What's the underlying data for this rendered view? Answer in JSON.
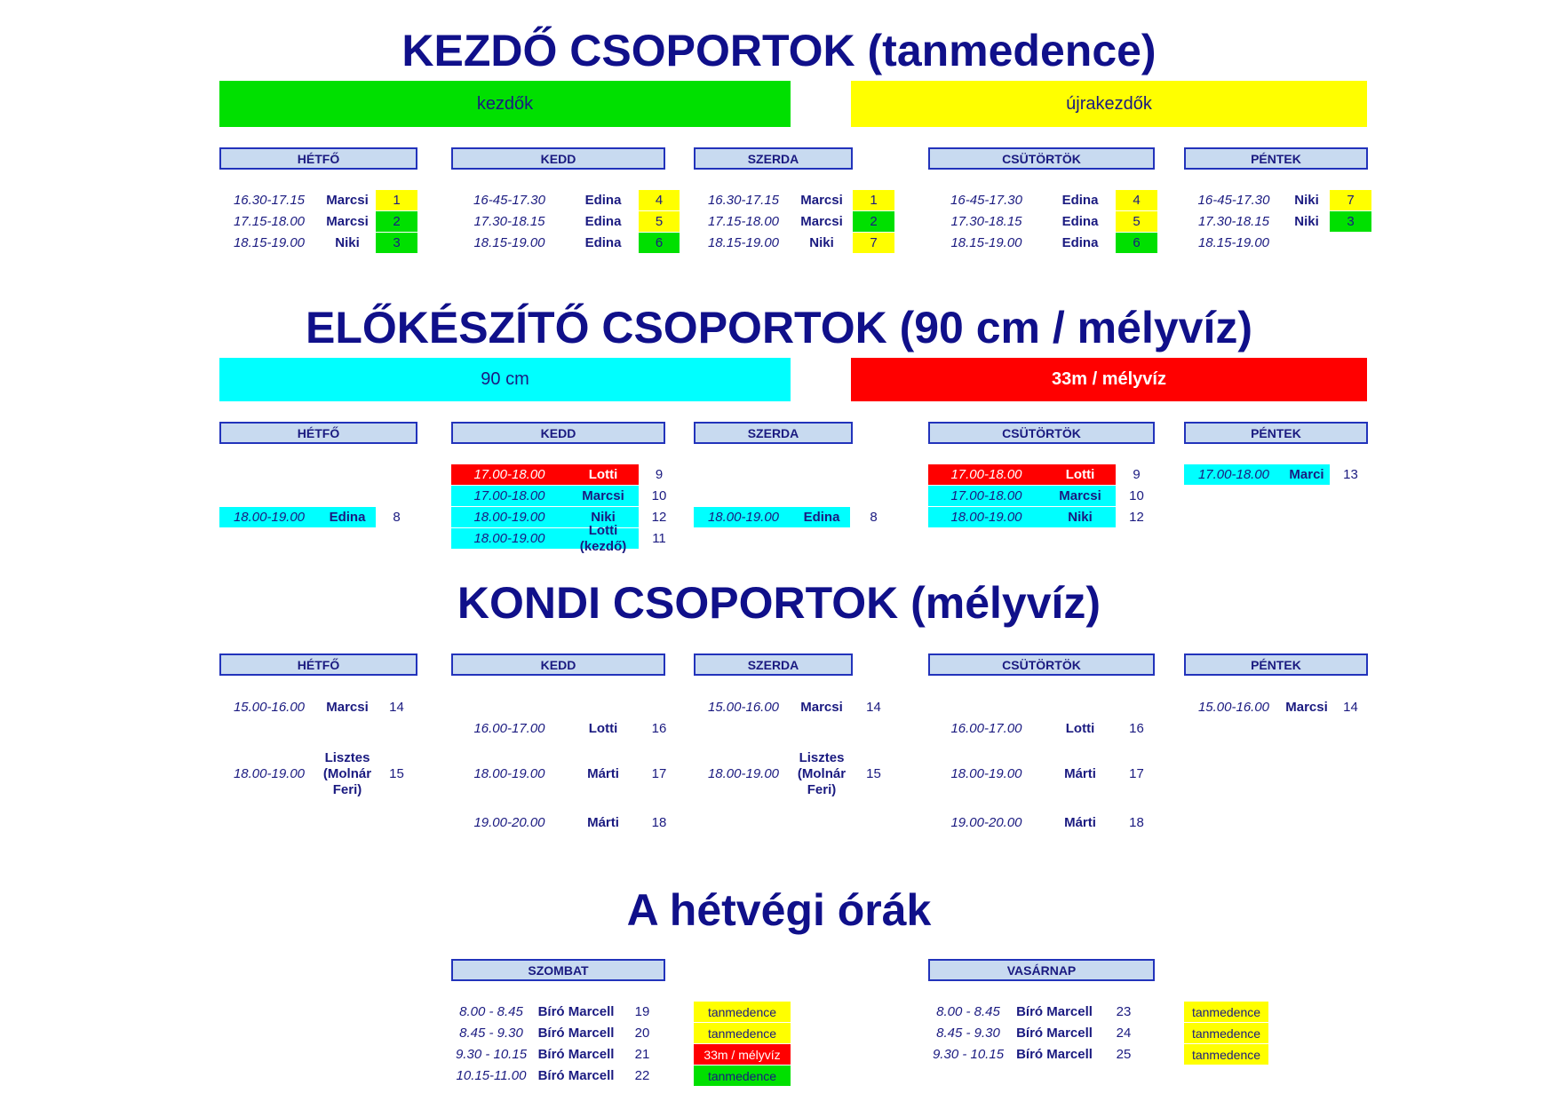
{
  "colors": {
    "green": "#00e000",
    "yellow": "#ffff00",
    "cyan": "#00ffff",
    "red": "#ff0000",
    "day_header": "#c8daf0",
    "title": "#10108a"
  },
  "days": {
    "mon": "HÉTFŐ",
    "tue": "KEDD",
    "wed": "SZERDA",
    "thu": "CSÜTÖRTÖK",
    "fri": "PÉNTEK",
    "sat": "SZOMBAT",
    "sun": "VASÁRNAP"
  },
  "section1": {
    "title": "KEZDŐ CSOPORTOK (tanmedence)",
    "band_left": "kezdők",
    "band_right": "újrakezdők",
    "mon": [
      {
        "time": "16.30-17.15",
        "name": "Marcsi",
        "group": "1",
        "color": "yellow"
      },
      {
        "time": "17.15-18.00",
        "name": "Marcsi",
        "group": "2",
        "color": "green"
      },
      {
        "time": "18.15-19.00",
        "name": "Niki",
        "group": "3",
        "color": "green"
      }
    ],
    "tue": [
      {
        "time": "16-45-17.30",
        "name": "Edina",
        "group": "4",
        "color": "yellow"
      },
      {
        "time": "17.30-18.15",
        "name": "Edina",
        "group": "5",
        "color": "yellow"
      },
      {
        "time": "18.15-19.00",
        "name": "Edina",
        "group": "6",
        "color": "green"
      }
    ],
    "wed": [
      {
        "time": "16.30-17.15",
        "name": "Marcsi",
        "group": "1",
        "color": "yellow"
      },
      {
        "time": "17.15-18.00",
        "name": "Marcsi",
        "group": "2",
        "color": "green"
      },
      {
        "time": "18.15-19.00",
        "name": "Niki",
        "group": "7",
        "color": "yellow"
      }
    ],
    "thu": [
      {
        "time": "16-45-17.30",
        "name": "Edina",
        "group": "4",
        "color": "yellow"
      },
      {
        "time": "17.30-18.15",
        "name": "Edina",
        "group": "5",
        "color": "yellow"
      },
      {
        "time": "18.15-19.00",
        "name": "Edina",
        "group": "6",
        "color": "green"
      }
    ],
    "fri": [
      {
        "time": "16-45-17.30",
        "name": "Niki",
        "group": "7",
        "color": "yellow"
      },
      {
        "time": "17.30-18.15",
        "name": "Niki",
        "group": "3",
        "color": "green"
      },
      {
        "time": "18.15-19.00",
        "name": "",
        "group": "",
        "color": ""
      }
    ]
  },
  "section2": {
    "title": "ELŐKÉSZÍTŐ CSOPORTOK (90 cm / mélyvíz)",
    "band_left": "90 cm",
    "band_right": "33m / mélyvíz",
    "mon": [
      {
        "time": "18.00-19.00",
        "name": "Edina",
        "group": "8",
        "color": "cyan"
      }
    ],
    "tue": [
      {
        "time": "17.00-18.00",
        "name": "Lotti",
        "group": "9",
        "color": "red"
      },
      {
        "time": "17.00-18.00",
        "name": "Marcsi",
        "group": "10",
        "color": "cyan"
      },
      {
        "time": "18.00-19.00",
        "name": "Niki",
        "group": "12",
        "color": "cyan"
      },
      {
        "time": "18.00-19.00",
        "name": "Lotti (kezdő)",
        "group": "11",
        "color": "cyan"
      }
    ],
    "wed": [
      {
        "time": "18.00-19.00",
        "name": "Edina",
        "group": "8",
        "color": "cyan"
      }
    ],
    "thu": [
      {
        "time": "17.00-18.00",
        "name": "Lotti",
        "group": "9",
        "color": "red"
      },
      {
        "time": "17.00-18.00",
        "name": "Marcsi",
        "group": "10",
        "color": "cyan"
      },
      {
        "time": "18.00-19.00",
        "name": "Niki",
        "group": "12",
        "color": "cyan"
      }
    ],
    "fri": [
      {
        "time": "17.00-18.00",
        "name": "Marci",
        "group": "13",
        "color": "cyan"
      }
    ]
  },
  "section3": {
    "title": "KONDI CSOPORTOK (mélyvíz)",
    "mon": [
      {
        "time": "15.00-16.00",
        "name": "Marcsi",
        "group": "14"
      },
      {
        "time": "18.00-19.00",
        "name": "Lisztes (Molnár Feri)",
        "group": "15"
      }
    ],
    "tue": [
      {
        "time": "16.00-17.00",
        "name": "Lotti",
        "group": "16"
      },
      {
        "time": "18.00-19.00",
        "name": "Márti",
        "group": "17"
      },
      {
        "time": "19.00-20.00",
        "name": "Márti",
        "group": "18"
      }
    ],
    "wed": [
      {
        "time": "15.00-16.00",
        "name": "Marcsi",
        "group": "14"
      },
      {
        "time": "18.00-19.00",
        "name": "Lisztes (Molnár Feri)",
        "group": "15"
      }
    ],
    "thu": [
      {
        "time": "16.00-17.00",
        "name": "Lotti",
        "group": "16"
      },
      {
        "time": "18.00-19.00",
        "name": "Márti",
        "group": "17"
      },
      {
        "time": "19.00-20.00",
        "name": "Márti",
        "group": "18"
      }
    ],
    "fri": [
      {
        "time": "15.00-16.00",
        "name": "Marcsi",
        "group": "14"
      }
    ]
  },
  "section4": {
    "title": "A hétvégi órák",
    "sat": [
      {
        "time": "8.00 - 8.45",
        "name": "Bíró Marcell",
        "group": "19",
        "location": "tanmedence",
        "color": "yellow"
      },
      {
        "time": "8.45 - 9.30",
        "name": "Bíró Marcell",
        "group": "20",
        "location": "tanmedence",
        "color": "yellow"
      },
      {
        "time": "9.30 - 10.15",
        "name": "Bíró Marcell",
        "group": "21",
        "location": "33m / mélyvíz",
        "color": "red"
      },
      {
        "time": "10.15-11.00",
        "name": "Bíró Marcell",
        "group": "22",
        "location": "tanmedence",
        "color": "green"
      }
    ],
    "sun": [
      {
        "time": "8.00 - 8.45",
        "name": "Bíró Marcell",
        "group": "23",
        "location": "tanmedence",
        "color": "yellow"
      },
      {
        "time": "8.45 - 9.30",
        "name": "Bíró Marcell",
        "group": "24",
        "location": "tanmedence",
        "color": "yellow"
      },
      {
        "time": "9.30 - 10.15",
        "name": "Bíró Marcell",
        "group": "25",
        "location": "tanmedence",
        "color": "yellow"
      }
    ]
  }
}
